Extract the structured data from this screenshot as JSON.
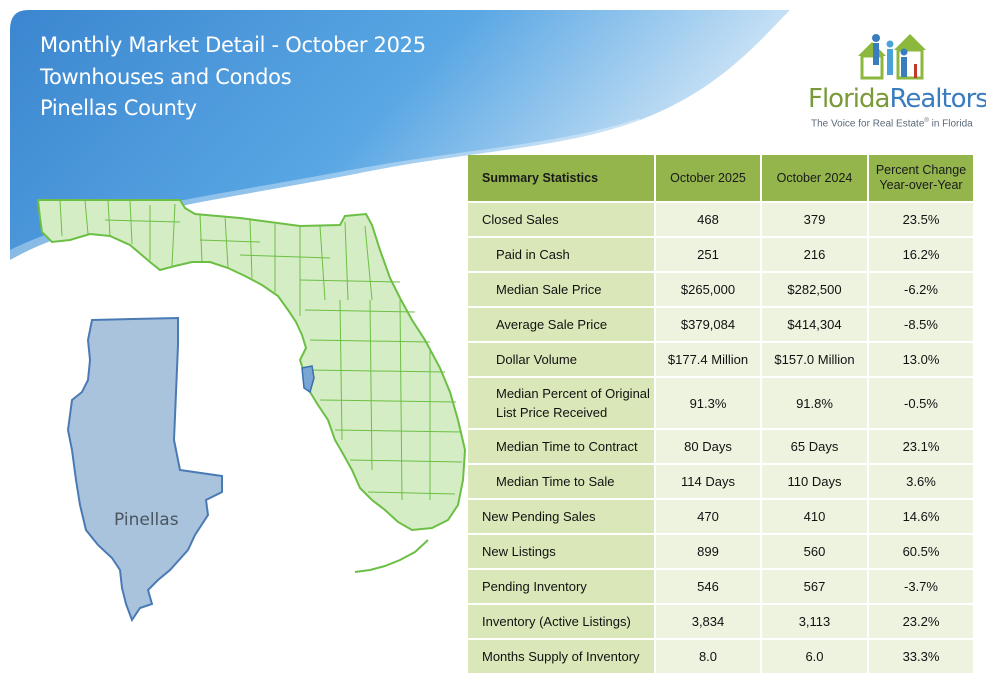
{
  "header": {
    "title_line1": "Monthly Market Detail - October 2025",
    "title_line2": "Townhouses and Condos",
    "title_line3": "Pinellas County"
  },
  "logo": {
    "word_florida": "Florida",
    "word_realtors": "Realtors",
    "registered": "®",
    "tagline_part1": "The Voice for Real Estate",
    "tagline_reg": "®",
    "tagline_part2": " in Florida"
  },
  "map": {
    "county_label": "Pinellas"
  },
  "colors": {
    "header_blue": "#4a93d6",
    "table_header_green": "#93b54c",
    "label_cell_green": "#dae8b9",
    "value_cell": "#eef3e0",
    "map_fill": "#d5edc4",
    "map_stroke": "#6cbf45",
    "county_fill": "#a9c3dd",
    "county_stroke": "#4a7ab4"
  },
  "table": {
    "headers": {
      "label": "Summary Statistics",
      "current": "October 2025",
      "previous": "October 2024",
      "change_line1": "Percent Change",
      "change_line2": "Year-over-Year"
    },
    "rows": [
      {
        "label": "Closed Sales",
        "current": "468",
        "previous": "379",
        "change": "23.5%"
      },
      {
        "label": "Paid in Cash",
        "current": "251",
        "previous": "216",
        "change": "16.2%"
      },
      {
        "label": "Median Sale Price",
        "current": "$265,000",
        "previous": "$282,500",
        "change": "-6.2%"
      },
      {
        "label": "Average Sale Price",
        "current": "$379,084",
        "previous": "$414,304",
        "change": "-8.5%"
      },
      {
        "label": "Dollar Volume",
        "current": "$177.4 Million",
        "previous": "$157.0 Million",
        "change": "13.0%"
      },
      {
        "label_line1": "Median Percent of Original",
        "label_line2": "List Price Received",
        "current": "91.3%",
        "previous": "91.8%",
        "change": "-0.5%"
      },
      {
        "label": "Median Time to Contract",
        "current": "80 Days",
        "previous": "65 Days",
        "change": "23.1%"
      },
      {
        "label": "Median Time to Sale",
        "current": "114 Days",
        "previous": "110 Days",
        "change": "3.6%"
      },
      {
        "label": "New Pending Sales",
        "current": "470",
        "previous": "410",
        "change": "14.6%"
      },
      {
        "label": "New Listings",
        "current": "899",
        "previous": "560",
        "change": "60.5%"
      },
      {
        "label": "Pending Inventory",
        "current": "546",
        "previous": "567",
        "change": "-3.7%"
      },
      {
        "label": "Inventory (Active Listings)",
        "current": "3,834",
        "previous": "3,113",
        "change": "23.2%"
      },
      {
        "label": "Months Supply of Inventory",
        "current": "8.0",
        "previous": "6.0",
        "change": "33.3%"
      }
    ]
  }
}
